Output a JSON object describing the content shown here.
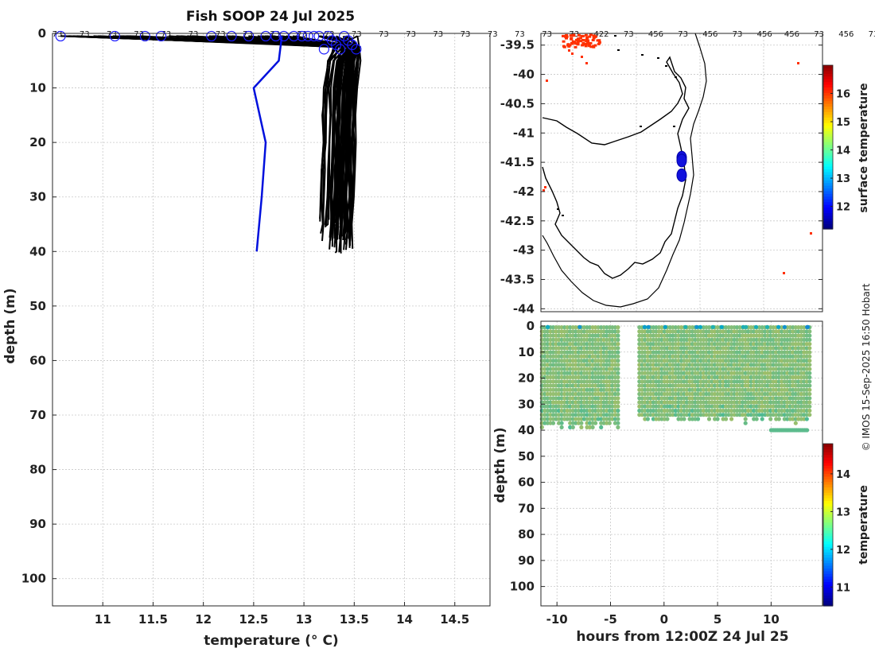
{
  "credit": "© IMOS 15-Sep-2025 16:50 Hobart",
  "colors": {
    "profile_black": "#000000",
    "profile_blue": "#0010dd",
    "marker_blue": "#1a1aff",
    "land_orange": "#ff8c00",
    "grid": "#c8c8c8"
  },
  "chart_data": [
    {
      "id": "profile",
      "type": "line",
      "title": "Fish SOOP 24 Jul 2025",
      "xlabel": "temperature (° C)",
      "ylabel": "depth (m)",
      "xlim": [
        10.5,
        14.85
      ],
      "ylim": [
        105,
        0
      ],
      "y_inverted": true,
      "grid": true,
      "xticks": [
        11,
        11.5,
        12,
        12.5,
        13,
        13.5,
        14,
        14.5
      ],
      "yticks": [
        0,
        10,
        20,
        30,
        40,
        50,
        60,
        70,
        80,
        90,
        100
      ],
      "top_labels": [
        "73",
        "73",
        "73",
        "73",
        "73",
        "73",
        "73",
        "73",
        "73",
        "73",
        "73",
        "73",
        "73",
        "73",
        "73",
        "73",
        "73",
        "73",
        "73",
        "73",
        "422",
        "73",
        "456",
        "73",
        "456",
        "73",
        "456",
        "456",
        "73",
        "456",
        "73"
      ],
      "highlight_series": {
        "name": "",
        "color": "#0010dd",
        "x": [
          12.78,
          12.75,
          12.5,
          12.62,
          12.58,
          12.53
        ],
        "y": [
          0.5,
          5,
          10,
          20,
          30,
          40
        ]
      },
      "black_series": {
        "count": 60,
        "surface_temp_range": [
          10.58,
          13.55
        ],
        "subsurface_temp_range": [
          13.2,
          13.55
        ],
        "max_depth_range": [
          34,
          40.5
        ]
      },
      "surface_markers_x": [
        10.58,
        11.12,
        11.42,
        11.58,
        12.08,
        12.28,
        12.45,
        12.62,
        12.72,
        12.8,
        12.9,
        12.98,
        13.04,
        13.1,
        13.15,
        13.2,
        13.24,
        13.28,
        13.32,
        13.36,
        13.4,
        13.44,
        13.48,
        13.52
      ]
    },
    {
      "id": "map",
      "type": "heatmap",
      "xlabel": "",
      "ylabel": "",
      "ylim": [
        -44.05,
        -39.3
      ],
      "yticks": [
        -39.5,
        -40,
        -40.5,
        -41,
        -41.5,
        -42,
        -42.5,
        -43,
        -43.5,
        -44
      ],
      "colorbar_label": "surface temperature",
      "colorbar_range": [
        11.2,
        17
      ],
      "colorbar_ticks": [
        12,
        13,
        14,
        15,
        16
      ],
      "sst_orange_value": 16,
      "vessel_positions": [
        [
          148.35,
          -41.42
        ],
        [
          148.35,
          -41.47
        ],
        [
          148.35,
          -41.72
        ]
      ]
    },
    {
      "id": "section",
      "type": "scatter",
      "xlabel": "hours from 12:00Z 24 Jul 25",
      "ylabel": "depth (m)",
      "xlim": [
        -11.5,
        14.8
      ],
      "ylim": [
        105,
        0
      ],
      "xticks": [
        -10,
        -5,
        0,
        5,
        10
      ],
      "yticks": [
        0,
        10,
        20,
        30,
        40,
        50,
        60,
        70,
        80,
        90,
        100
      ],
      "colorbar_label": "temperature",
      "colorbar_range": [
        10.5,
        14.8
      ],
      "colorbar_ticks": [
        11,
        12,
        13,
        14
      ],
      "segments": [
        {
          "t_start": -11.4,
          "t_end": -4.3,
          "max_depth": 38
        },
        {
          "t_start": -2.3,
          "t_end": 13.6,
          "max_depth": 36
        }
      ],
      "tail_segment": {
        "t_start": 10.0,
        "t_end": 13.4,
        "max_depth": 40
      },
      "typical_temp": 13.45
    }
  ]
}
